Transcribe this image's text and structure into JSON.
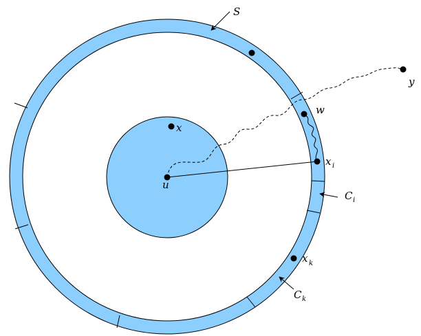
{
  "colors": {
    "fill": "#8ccfff",
    "stroke": "#000000",
    "background": "#ffffff"
  },
  "labels": {
    "S": "S",
    "u": "u",
    "x": "x",
    "w": "w",
    "y": "y",
    "xi_base": "x",
    "xi_sub": "i",
    "Ci_base": "C",
    "Ci_sub": "i",
    "xk_base": "x",
    "xk_sub": "k",
    "Ck_base": "C",
    "Ck_sub": "k"
  }
}
